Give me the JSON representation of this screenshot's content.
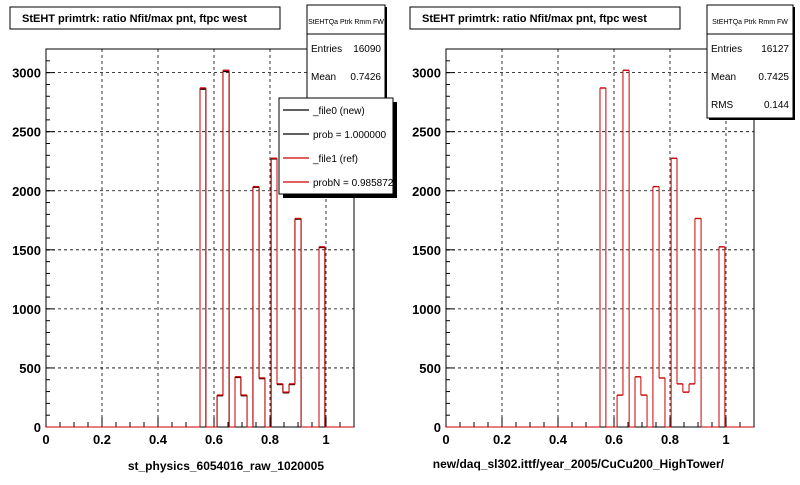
{
  "chart_data": [
    {
      "type": "histogram",
      "title": "StEHT primtrk: ratio Nfit/max pnt, ftpc west",
      "xlabel": "st_physics_6054016_raw_1020005",
      "ylabel": "",
      "xlim": [
        0,
        1.1
      ],
      "ylim": [
        0,
        3200
      ],
      "x_ticks": [
        "0",
        "0.2",
        "0.4",
        "0.6",
        "0.8",
        "1"
      ],
      "y_ticks": [
        "0",
        "500",
        "1000",
        "1500",
        "2000",
        "2500",
        "3000"
      ],
      "grid": true,
      "stats": {
        "name": "StEHTQa Ptrk Rmm FW",
        "rows": [
          {
            "label": "Entries",
            "value": "16090"
          },
          {
            "label": "Mean",
            "value": "0.7426"
          }
        ]
      },
      "legend": {
        "placement": "top-right",
        "entries": [
          {
            "label": "_file0 (new)",
            "color": "#000000"
          },
          {
            "label": "prob = 1.000000",
            "color": "#000000"
          },
          {
            "label": "_file1 (ref)",
            "color": "#cc0000"
          },
          {
            "label": "probN = 0.985872",
            "color": "#cc0000"
          }
        ]
      },
      "series": [
        {
          "name": "_file0 (new)",
          "color": "#000000",
          "bins": [
            {
              "x0": 0.55,
              "x1": 0.571,
              "y": 2860
            },
            {
              "x0": 0.571,
              "x1": 0.611,
              "y": 0
            },
            {
              "x0": 0.611,
              "x1": 0.632,
              "y": 265
            },
            {
              "x0": 0.632,
              "x1": 0.654,
              "y": 3010
            },
            {
              "x0": 0.654,
              "x1": 0.675,
              "y": 0
            },
            {
              "x0": 0.675,
              "x1": 0.696,
              "y": 420
            },
            {
              "x0": 0.696,
              "x1": 0.718,
              "y": 265
            },
            {
              "x0": 0.718,
              "x1": 0.739,
              "y": 0
            },
            {
              "x0": 0.739,
              "x1": 0.761,
              "y": 2030
            },
            {
              "x0": 0.761,
              "x1": 0.782,
              "y": 410
            },
            {
              "x0": 0.782,
              "x1": 0.804,
              "y": 0
            },
            {
              "x0": 0.804,
              "x1": 0.825,
              "y": 2270
            },
            {
              "x0": 0.825,
              "x1": 0.846,
              "y": 360
            },
            {
              "x0": 0.846,
              "x1": 0.868,
              "y": 290
            },
            {
              "x0": 0.868,
              "x1": 0.889,
              "y": 360
            },
            {
              "x0": 0.889,
              "x1": 0.911,
              "y": 1760
            },
            {
              "x0": 0.911,
              "x1": 0.932,
              "y": 0
            },
            {
              "x0": 0.932,
              "x1": 0.954,
              "y": 0
            },
            {
              "x0": 0.954,
              "x1": 0.975,
              "y": 0
            },
            {
              "x0": 0.975,
              "x1": 0.996,
              "y": 1520
            }
          ]
        },
        {
          "name": "_file1 (ref)",
          "color": "#cc0000",
          "bins": [
            {
              "x0": 0.55,
              "x1": 0.571,
              "y": 2870
            },
            {
              "x0": 0.571,
              "x1": 0.611,
              "y": 0
            },
            {
              "x0": 0.611,
              "x1": 0.632,
              "y": 270
            },
            {
              "x0": 0.632,
              "x1": 0.654,
              "y": 3020
            },
            {
              "x0": 0.654,
              "x1": 0.675,
              "y": 0
            },
            {
              "x0": 0.675,
              "x1": 0.696,
              "y": 425
            },
            {
              "x0": 0.696,
              "x1": 0.718,
              "y": 270
            },
            {
              "x0": 0.718,
              "x1": 0.739,
              "y": 0
            },
            {
              "x0": 0.739,
              "x1": 0.761,
              "y": 2035
            },
            {
              "x0": 0.761,
              "x1": 0.782,
              "y": 415
            },
            {
              "x0": 0.782,
              "x1": 0.804,
              "y": 0
            },
            {
              "x0": 0.804,
              "x1": 0.825,
              "y": 2275
            },
            {
              "x0": 0.825,
              "x1": 0.846,
              "y": 365
            },
            {
              "x0": 0.846,
              "x1": 0.868,
              "y": 295
            },
            {
              "x0": 0.868,
              "x1": 0.889,
              "y": 365
            },
            {
              "x0": 0.889,
              "x1": 0.911,
              "y": 1765
            },
            {
              "x0": 0.911,
              "x1": 0.932,
              "y": 0
            },
            {
              "x0": 0.932,
              "x1": 0.954,
              "y": 0
            },
            {
              "x0": 0.954,
              "x1": 0.975,
              "y": 0
            },
            {
              "x0": 0.975,
              "x1": 0.996,
              "y": 1525
            }
          ]
        }
      ]
    },
    {
      "type": "histogram",
      "title": "StEHT primtrk: ratio Nfit/max pnt, ftpc west",
      "xlabel": "new/daq_sl302.ittf/year_2005/CuCu200_HighTower/",
      "ylabel": "",
      "xlim": [
        0,
        1.1
      ],
      "ylim": [
        0,
        3200
      ],
      "x_ticks": [
        "0",
        "0.2",
        "0.4",
        "0.6",
        "0.8",
        "1"
      ],
      "y_ticks": [
        "0",
        "500",
        "1000",
        "1500",
        "2000",
        "2500",
        "3000"
      ],
      "grid": true,
      "stats": {
        "name": "StEHTQa Ptrk Rmm FW",
        "rows": [
          {
            "label": "Entries",
            "value": "16127"
          },
          {
            "label": "Mean",
            "value": "0.7425"
          },
          {
            "label": "RMS",
            "value": "0.144"
          }
        ]
      },
      "series": [
        {
          "name": "_file1 (ref)",
          "color": "#cc0000",
          "bins": [
            {
              "x0": 0.55,
              "x1": 0.571,
              "y": 2870
            },
            {
              "x0": 0.571,
              "x1": 0.611,
              "y": 0
            },
            {
              "x0": 0.611,
              "x1": 0.632,
              "y": 270
            },
            {
              "x0": 0.632,
              "x1": 0.654,
              "y": 3020
            },
            {
              "x0": 0.654,
              "x1": 0.675,
              "y": 0
            },
            {
              "x0": 0.675,
              "x1": 0.696,
              "y": 425
            },
            {
              "x0": 0.696,
              "x1": 0.718,
              "y": 270
            },
            {
              "x0": 0.718,
              "x1": 0.739,
              "y": 0
            },
            {
              "x0": 0.739,
              "x1": 0.761,
              "y": 2035
            },
            {
              "x0": 0.761,
              "x1": 0.782,
              "y": 415
            },
            {
              "x0": 0.782,
              "x1": 0.804,
              "y": 0
            },
            {
              "x0": 0.804,
              "x1": 0.825,
              "y": 2275
            },
            {
              "x0": 0.825,
              "x1": 0.846,
              "y": 365
            },
            {
              "x0": 0.846,
              "x1": 0.868,
              "y": 295
            },
            {
              "x0": 0.868,
              "x1": 0.889,
              "y": 365
            },
            {
              "x0": 0.889,
              "x1": 0.911,
              "y": 1765
            },
            {
              "x0": 0.911,
              "x1": 0.932,
              "y": 0
            },
            {
              "x0": 0.932,
              "x1": 0.954,
              "y": 0
            },
            {
              "x0": 0.954,
              "x1": 0.975,
              "y": 0
            },
            {
              "x0": 0.975,
              "x1": 0.996,
              "y": 1525
            }
          ]
        }
      ]
    }
  ]
}
